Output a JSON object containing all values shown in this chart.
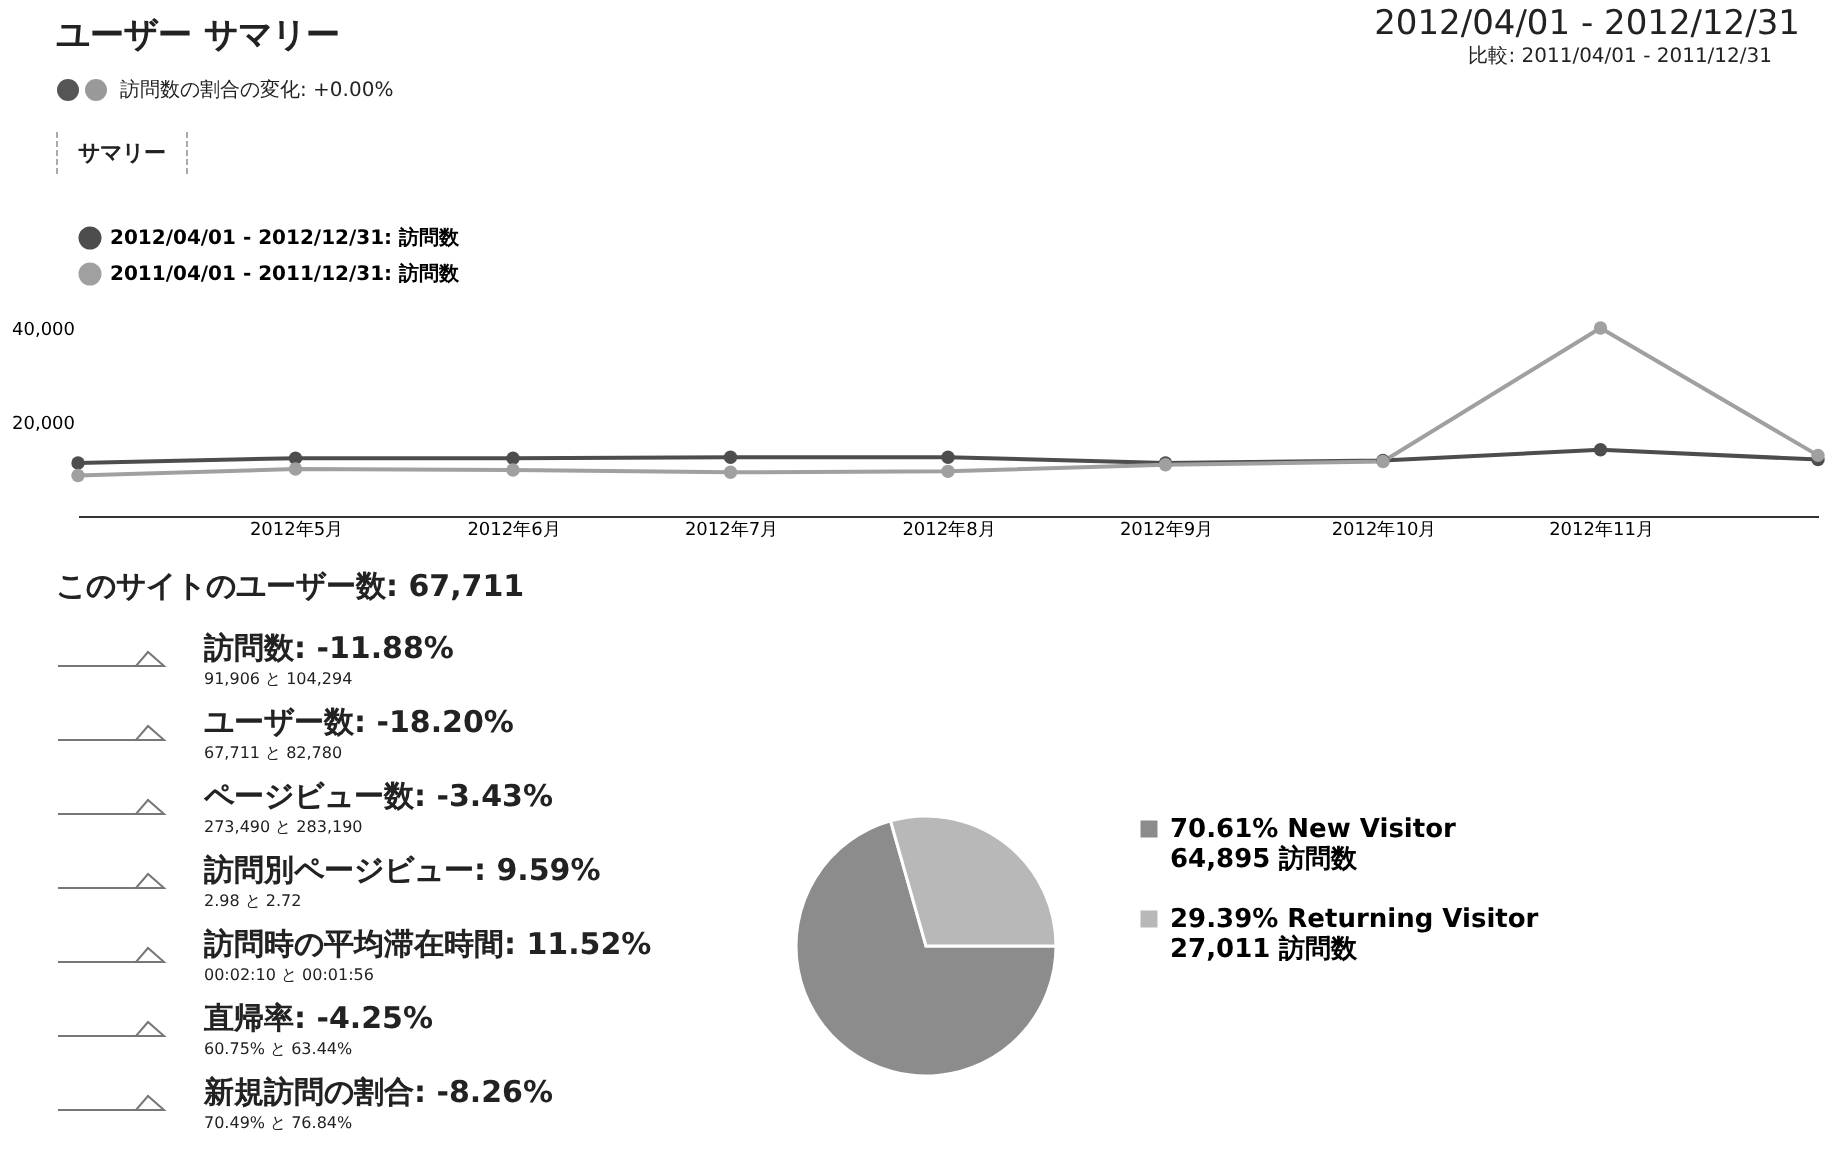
{
  "chart_data": [
    {
      "type": "line",
      "title": "ユーザー サマリー",
      "subtitle": "2012/04/01 - 2012/12/31",
      "annotations": [
        "比較: 2011/04/01 - 2011/12/31",
        "訪問数の割合の変化: +0.00%",
        "サマリー"
      ],
      "categories": [
        null,
        "2012年5月",
        "2012年6月",
        "2012年7月",
        "2012年8月",
        "2012年9月",
        "2012年10月",
        "2012年11月",
        null
      ],
      "series": [
        {
          "name": "2012/04/01 - 2012/12/31: 訪問数",
          "color": "#4d4d4d",
          "values": [
            11300,
            12300,
            12300,
            12500,
            12500,
            11300,
            11800,
            14100,
            12000
          ]
        },
        {
          "name": "2011/04/01 - 2011/12/31: 訪問数",
          "color": "#a0a0a0",
          "values": [
            8600,
            10000,
            9800,
            9300,
            9500,
            10900,
            11600,
            40000,
            12900
          ]
        }
      ],
      "ylim": [
        0,
        40000
      ],
      "yticks": [
        {
          "value": 20000,
          "label": "20,000"
        },
        {
          "value": 40000,
          "label": "40,000"
        }
      ],
      "legend": "top left",
      "marker": "circle",
      "grid": false
    },
    {
      "type": "other",
      "title": "このサイトのユーザー数: 67,711",
      "annotations": [
        "訪問数: -11.88%",
        "91,906 と 104,294",
        "ユーザー数: -18.20%",
        "67,711 と 82,780",
        "ページビュー数: -3.43%",
        "273,490 と 283,190",
        "訪問別ページビュー: 9.59%",
        "2.98 と 2.72",
        "訪問時の平均滞在時間: 11.52%",
        "00:02:10 と 00:01:56",
        "直帰率: -4.25%",
        "60.75% と 63.44%",
        "新規訪問の割合: -8.26%",
        "70.49% と 76.84%"
      ]
    },
    {
      "type": "pie",
      "categories": [
        "New Visitor",
        "Returning Visitor"
      ],
      "values": [
        70.61,
        29.39
      ],
      "colors": [
        "#8c8c8c",
        "#b8b8b8"
      ],
      "value_labels": [
        "70.61%",
        "29.39%"
      ],
      "annotations": [
        "64,895 訪問数",
        "27,011 訪問数"
      ],
      "legend": "right"
    }
  ]
}
